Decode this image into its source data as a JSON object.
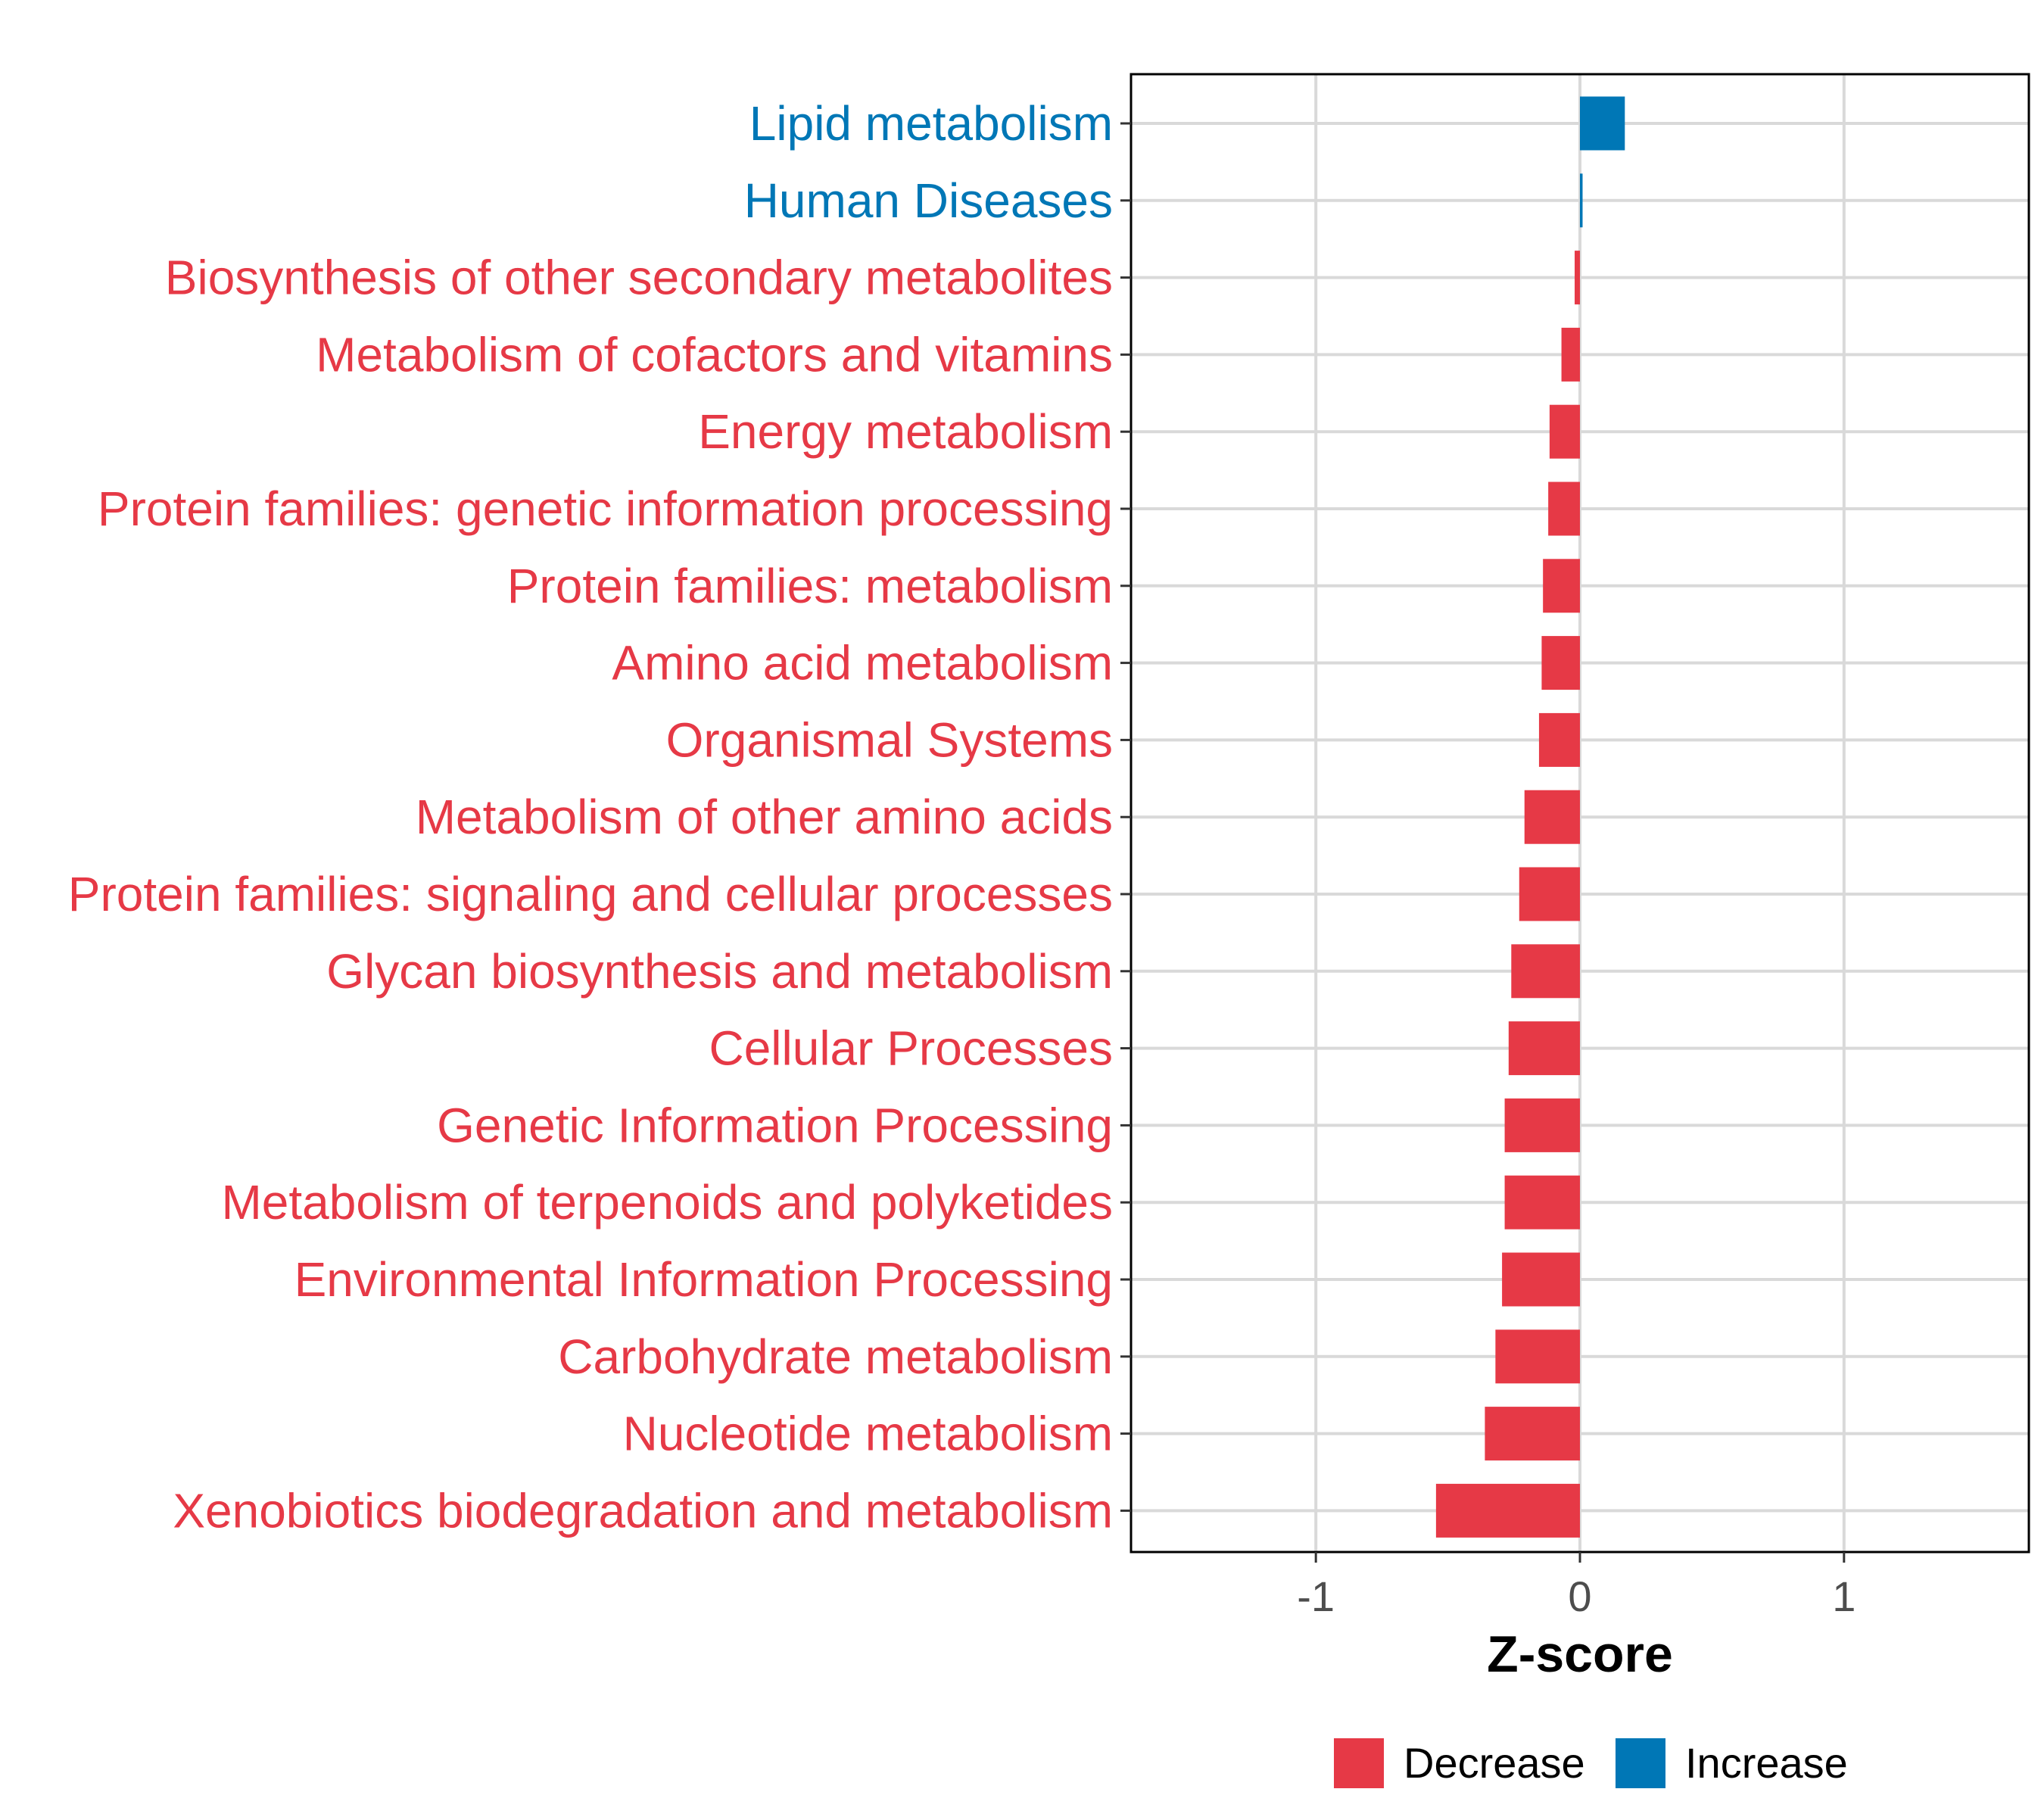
{
  "chart_data": {
    "type": "bar",
    "orientation": "horizontal",
    "xlabel": "Z-score",
    "ylabel": "",
    "xlim": [
      -1.7,
      1.7
    ],
    "xticks": [
      -1,
      0,
      1
    ],
    "xtick_labels": [
      "-1",
      "0",
      "1"
    ],
    "grid": true,
    "categories": [
      "Lipid metabolism",
      "Human Diseases",
      "Biosynthesis of other secondary metabolites",
      "Metabolism of cofactors and vitamins",
      "Energy metabolism",
      "Protein families: genetic information processing",
      "Protein families: metabolism",
      "Amino acid metabolism",
      "Organismal Systems",
      "Metabolism of other amino acids",
      "Protein families: signaling and cellular processes",
      "Glycan biosynthesis and metabolism",
      "Cellular Processes",
      "Genetic Information Processing",
      "Metabolism of terpenoids and polyketides",
      "Environmental Information Processing",
      "Carbohydrate metabolism",
      "Nucleotide metabolism",
      "Xenobiotics biodegradation and metabolism"
    ],
    "values": [
      0.17,
      0.01,
      -0.02,
      -0.07,
      -0.115,
      -0.12,
      -0.14,
      -0.145,
      -0.155,
      -0.21,
      -0.23,
      -0.26,
      -0.27,
      -0.285,
      -0.285,
      -0.295,
      -0.32,
      -0.36,
      -0.545
    ],
    "legend": {
      "position": "bottom",
      "entries": [
        {
          "label": "Decrease",
          "color": "#E63946"
        },
        {
          "label": "Increase",
          "color": "#0077B6"
        }
      ]
    },
    "colors": {
      "decrease": "#E63946",
      "increase": "#0077B6"
    }
  }
}
